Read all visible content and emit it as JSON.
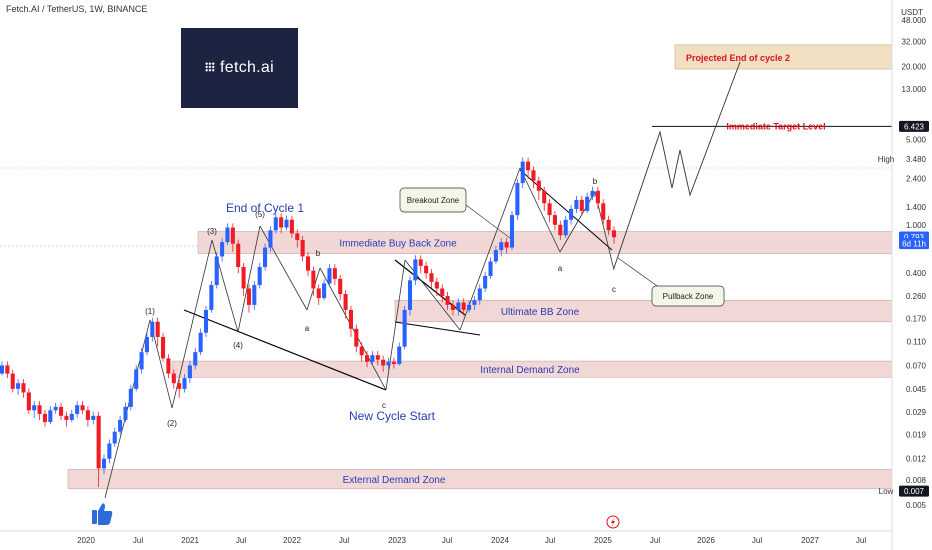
{
  "header": {
    "title": "Fetch.AI / TetherUS, 1W, BINANCE"
  },
  "logo": {
    "text": "fetch.ai",
    "bg_color": "#1c2442"
  },
  "chart_data": {
    "type": "candlestick",
    "scale": "log",
    "currency_label": "USDT",
    "x_tick_labels": [
      "2020",
      "Jul",
      "2021",
      "Jul",
      "2022",
      "Jul",
      "2023",
      "Jul",
      "2024",
      "Jul",
      "2025",
      "Jul",
      "2026",
      "Jul",
      "2027",
      "Jul"
    ],
    "y_tick_labels": [
      "48.000",
      "32.000",
      "20.000",
      "13.000",
      "5.000",
      "3.480",
      "2.400",
      "1.400",
      "1.000",
      "0.400",
      "0.260",
      "0.170",
      "0.110",
      "0.070",
      "0.045",
      "0.029",
      "0.019",
      "0.012",
      "0.008",
      "0.005"
    ],
    "price_labels": [
      {
        "text": "6.423",
        "value": 6.423,
        "style": "dark"
      },
      {
        "text": "0.793",
        "value": 0.793,
        "style": "blue"
      },
      {
        "text": "6d 11h",
        "value": 0.7,
        "style": "blue"
      },
      {
        "text": "0.007",
        "value": 0.0065,
        "style": "dark"
      }
    ],
    "markers": [
      {
        "text": "High",
        "value": 3.48
      },
      {
        "text": "Low",
        "value": 0.0065
      }
    ],
    "zones": [
      {
        "label": "Projected End of cycle 2",
        "low": 19.0,
        "high": 30.0,
        "style": "tan"
      },
      {
        "label": "Immediate Buy Back Zone",
        "low": 0.58,
        "high": 0.88,
        "style": "pink"
      },
      {
        "label": "Ultimate BB Zone",
        "low": 0.16,
        "high": 0.24,
        "style": "pink"
      },
      {
        "label": "Internal Demand Zone",
        "low": 0.056,
        "high": 0.076,
        "style": "pink"
      },
      {
        "label": "External Demand Zone",
        "low": 0.0068,
        "high": 0.0098,
        "style": "pink"
      }
    ],
    "levels": [
      {
        "label": "Immediate Target Level",
        "value": 6.423,
        "color": "#e0101a"
      }
    ],
    "wave_labels": [
      "(1)",
      "(2)",
      "(3)",
      "(4)",
      "(5)",
      "a",
      "b",
      "c",
      "a",
      "b",
      "c"
    ],
    "annotations": [
      "End of Cycle 1",
      "New Cycle Start"
    ],
    "callouts": [
      "Breakout Zone",
      "Pullback Zone"
    ],
    "series": [
      {
        "candles": [
          [
            0.06,
            0.07,
            0.058
          ],
          [
            0.07,
            0.06,
            0.055
          ],
          [
            0.06,
            0.045,
            0.042
          ],
          [
            0.045,
            0.05,
            0.04
          ],
          [
            0.05,
            0.042,
            0.038
          ],
          [
            0.042,
            0.03,
            0.028
          ],
          [
            0.03,
            0.033,
            0.026
          ],
          [
            0.033,
            0.028,
            0.025
          ],
          [
            0.028,
            0.024,
            0.022
          ],
          [
            0.024,
            0.03,
            0.023
          ],
          [
            0.03,
            0.032,
            0.028
          ],
          [
            0.032,
            0.027,
            0.025
          ],
          [
            0.027,
            0.025,
            0.022
          ],
          [
            0.025,
            0.028,
            0.024
          ],
          [
            0.028,
            0.033,
            0.026
          ],
          [
            0.033,
            0.03,
            0.028
          ],
          [
            0.03,
            0.025,
            0.022
          ],
          [
            0.025,
            0.027,
            0.023
          ],
          [
            0.027,
            0.01,
            0.007
          ],
          [
            0.01,
            0.012,
            0.009
          ],
          [
            0.012,
            0.016,
            0.011
          ],
          [
            0.016,
            0.02,
            0.015
          ],
          [
            0.02,
            0.025,
            0.019
          ],
          [
            0.025,
            0.032,
            0.024
          ],
          [
            0.032,
            0.045,
            0.03
          ],
          [
            0.045,
            0.065,
            0.043
          ],
          [
            0.065,
            0.09,
            0.06
          ],
          [
            0.09,
            0.12,
            0.085
          ],
          [
            0.12,
            0.16,
            0.11
          ],
          [
            0.16,
            0.12,
            0.1
          ],
          [
            0.12,
            0.08,
            0.075
          ],
          [
            0.08,
            0.06,
            0.055
          ],
          [
            0.06,
            0.05,
            0.045
          ],
          [
            0.05,
            0.045,
            0.038
          ],
          [
            0.045,
            0.055,
            0.042
          ],
          [
            0.055,
            0.07,
            0.05
          ],
          [
            0.07,
            0.09,
            0.065
          ],
          [
            0.09,
            0.13,
            0.085
          ],
          [
            0.13,
            0.2,
            0.12
          ],
          [
            0.2,
            0.32,
            0.19
          ],
          [
            0.32,
            0.55,
            0.3
          ],
          [
            0.55,
            0.72,
            0.5
          ],
          [
            0.72,
            0.95,
            0.68
          ],
          [
            0.95,
            0.7,
            0.6
          ],
          [
            0.7,
            0.45,
            0.4
          ],
          [
            0.45,
            0.3,
            0.26
          ],
          [
            0.3,
            0.22,
            0.19
          ],
          [
            0.22,
            0.32,
            0.2
          ],
          [
            0.32,
            0.45,
            0.3
          ],
          [
            0.45,
            0.65,
            0.42
          ],
          [
            0.65,
            0.9,
            0.6
          ],
          [
            0.9,
            1.15,
            0.85
          ],
          [
            1.15,
            0.95,
            0.85
          ],
          [
            0.95,
            1.1,
            0.9
          ],
          [
            1.1,
            0.85,
            0.78
          ],
          [
            0.85,
            0.75,
            0.65
          ],
          [
            0.75,
            0.55,
            0.5
          ],
          [
            0.55,
            0.42,
            0.38
          ],
          [
            0.42,
            0.3,
            0.26
          ],
          [
            0.3,
            0.25,
            0.22
          ],
          [
            0.25,
            0.33,
            0.24
          ],
          [
            0.33,
            0.44,
            0.31
          ],
          [
            0.44,
            0.36,
            0.32
          ],
          [
            0.36,
            0.27,
            0.24
          ],
          [
            0.27,
            0.2,
            0.17
          ],
          [
            0.2,
            0.14,
            0.12
          ],
          [
            0.14,
            0.1,
            0.09
          ],
          [
            0.1,
            0.085,
            0.075
          ],
          [
            0.085,
            0.075,
            0.068
          ],
          [
            0.075,
            0.085,
            0.07
          ],
          [
            0.085,
            0.078,
            0.07
          ],
          [
            0.078,
            0.07,
            0.062
          ],
          [
            0.07,
            0.075,
            0.065
          ],
          [
            0.075,
            0.072,
            0.066
          ],
          [
            0.072,
            0.1,
            0.07
          ],
          [
            0.1,
            0.2,
            0.095
          ],
          [
            0.2,
            0.35,
            0.18
          ],
          [
            0.35,
            0.52,
            0.32
          ],
          [
            0.52,
            0.46,
            0.4
          ],
          [
            0.46,
            0.4,
            0.36
          ],
          [
            0.4,
            0.34,
            0.3
          ],
          [
            0.34,
            0.3,
            0.26
          ],
          [
            0.3,
            0.26,
            0.23
          ],
          [
            0.26,
            0.22,
            0.2
          ],
          [
            0.22,
            0.2,
            0.18
          ],
          [
            0.2,
            0.23,
            0.18
          ],
          [
            0.23,
            0.2,
            0.18
          ],
          [
            0.2,
            0.22,
            0.19
          ],
          [
            0.22,
            0.24,
            0.2
          ],
          [
            0.24,
            0.3,
            0.22
          ],
          [
            0.3,
            0.38,
            0.28
          ],
          [
            0.38,
            0.5,
            0.36
          ],
          [
            0.5,
            0.62,
            0.48
          ],
          [
            0.62,
            0.72,
            0.55
          ],
          [
            0.72,
            0.65,
            0.58
          ],
          [
            0.65,
            1.2,
            0.62
          ],
          [
            1.2,
            2.2,
            1.1
          ],
          [
            2.2,
            3.3,
            2.0
          ],
          [
            3.3,
            2.8,
            2.4
          ],
          [
            2.8,
            2.3,
            2.0
          ],
          [
            2.3,
            1.9,
            1.6
          ],
          [
            1.9,
            1.5,
            1.3
          ],
          [
            1.5,
            1.2,
            1.05
          ],
          [
            1.2,
            1.0,
            0.9
          ],
          [
            1.0,
            0.82,
            0.75
          ],
          [
            0.82,
            1.1,
            0.78
          ],
          [
            1.1,
            1.35,
            1.0
          ],
          [
            1.35,
            1.6,
            1.25
          ],
          [
            1.6,
            1.3,
            1.2
          ],
          [
            1.3,
            1.7,
            1.25
          ],
          [
            1.7,
            1.9,
            1.6
          ],
          [
            1.9,
            1.5,
            1.35
          ],
          [
            1.5,
            1.1,
            1.0
          ],
          [
            1.1,
            0.9,
            0.82
          ],
          [
            0.9,
            0.79,
            0.7
          ]
        ]
      }
    ]
  }
}
